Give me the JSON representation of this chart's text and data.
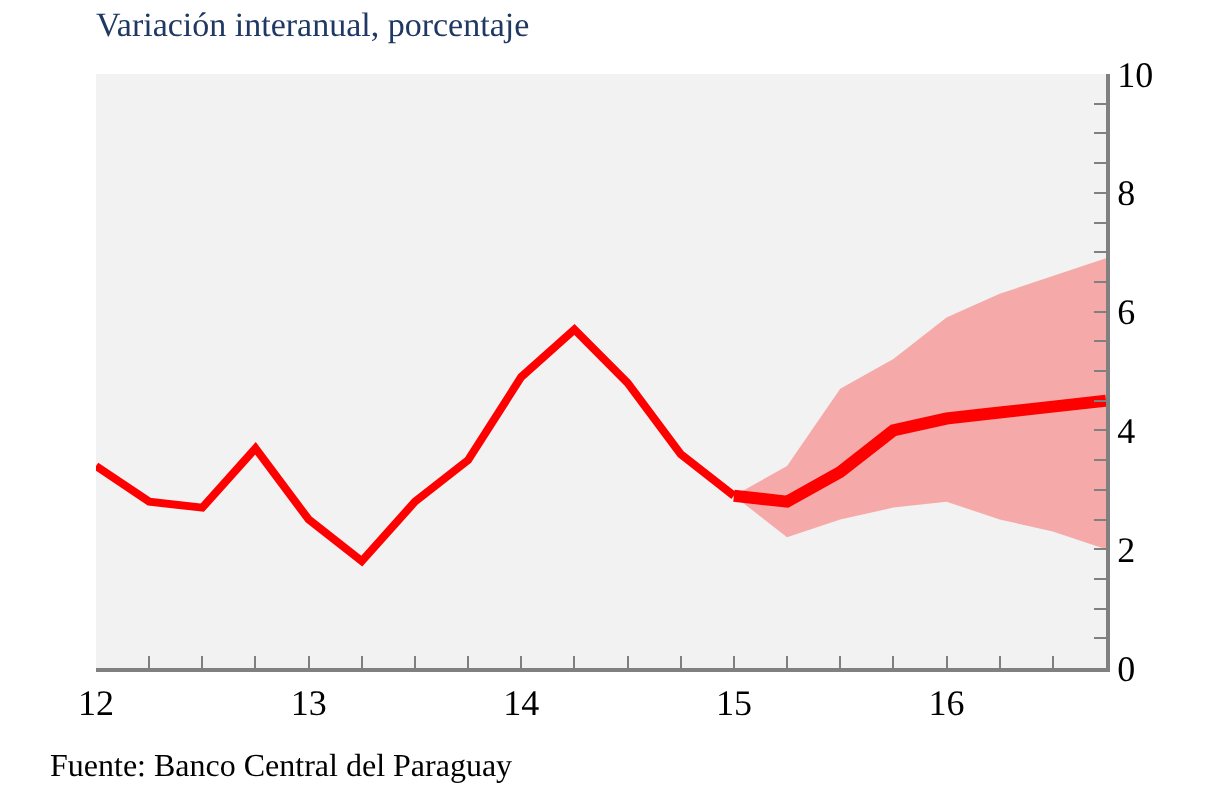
{
  "chart_data": {
    "type": "line",
    "title": "Variación interanual, porcentaje",
    "annotations": [
      "Fuente: Banco Central del Paraguay"
    ],
    "series": [
      {
        "color": "#ff0000",
        "x": [
          12,
          12.25,
          12.5,
          12.75,
          13,
          13.25,
          13.5,
          13.75,
          14,
          14.25,
          14.5,
          14.75,
          15
        ],
        "values": [
          3.4,
          2.8,
          2.7,
          3.7,
          2.5,
          1.8,
          2.8,
          3.5,
          4.9,
          5.7,
          4.8,
          3.6,
          2.9
        ]
      },
      {
        "color": "#ff0000",
        "x": [
          15,
          15.25,
          15.5,
          15.75,
          16,
          16.25,
          16.5,
          16.75
        ],
        "values": [
          2.9,
          2.8,
          3.3,
          4.0,
          4.2,
          4.3,
          4.4,
          4.5
        ],
        "lower": [
          2.9,
          2.2,
          2.5,
          2.7,
          2.8,
          2.5,
          2.3,
          2.0
        ],
        "upper": [
          2.9,
          3.4,
          4.7,
          5.2,
          5.9,
          6.3,
          6.6,
          6.9
        ]
      }
    ],
    "xlim": [
      12,
      16.75
    ],
    "xticks": [
      12,
      {
        "value": 12.25,
        "label": null
      },
      {
        "value": 12.5,
        "label": null
      },
      {
        "value": 12.75,
        "label": null
      },
      13,
      {
        "value": 13.25,
        "label": null
      },
      {
        "value": 13.5,
        "label": null
      },
      {
        "value": 13.75,
        "label": null
      },
      14,
      {
        "value": 14.25,
        "label": null
      },
      {
        "value": 14.5,
        "label": null
      },
      {
        "value": 14.75,
        "label": null
      },
      15,
      {
        "value": 15.25,
        "label": null
      },
      {
        "value": 15.5,
        "label": null
      },
      {
        "value": 15.75,
        "label": null
      },
      16,
      {
        "value": 16.25,
        "label": null
      },
      {
        "value": 16.5,
        "label": null
      },
      {
        "value": 16.75,
        "label": null
      }
    ],
    "ylim": [
      0,
      10
    ],
    "yticks": [
      0,
      {
        "value": 0.5,
        "label": null
      },
      {
        "value": 1,
        "label": null
      },
      {
        "value": 1.5,
        "label": null
      },
      2,
      {
        "value": 2.5,
        "label": null
      },
      {
        "value": 3,
        "label": null
      },
      {
        "value": 3.5,
        "label": null
      },
      4,
      {
        "value": 4.5,
        "label": null
      },
      {
        "value": 5,
        "label": null
      },
      {
        "value": 5.5,
        "label": null
      },
      6,
      {
        "value": 6.5,
        "label": null
      },
      {
        "value": 7,
        "label": null
      },
      {
        "value": 7.5,
        "label": null
      },
      8,
      {
        "value": 8.5,
        "label": null
      },
      {
        "value": 9,
        "label": null
      },
      {
        "value": 9.5,
        "label": null
      },
      10
    ],
    "grid": false
  }
}
